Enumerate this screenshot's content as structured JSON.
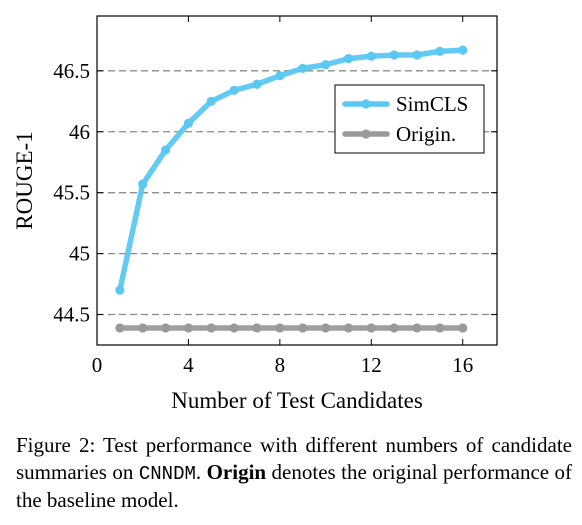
{
  "chart_data": {
    "type": "line",
    "xlabel": "Number of Test Candidates",
    "ylabel": "ROUGE-1",
    "xlim": [
      0,
      17.5
    ],
    "ylim": [
      44.25,
      46.95
    ],
    "x_ticks": [
      0,
      4,
      8,
      12,
      16
    ],
    "y_ticks": [
      44.5,
      45,
      45.5,
      46,
      46.5
    ],
    "x_tick_labels": [
      "0",
      "4",
      "8",
      "12",
      "16"
    ],
    "y_tick_labels": [
      "44.5",
      "45",
      "45.5",
      "46",
      "46.5"
    ],
    "grid": "horizontal dashed at y ticks",
    "legend_position": "right-middle",
    "x": [
      1,
      2,
      3,
      4,
      5,
      6,
      7,
      8,
      9,
      10,
      11,
      12,
      13,
      14,
      15,
      16
    ],
    "series": [
      {
        "name": "SimCLS",
        "color": "#5bc8f2",
        "values": [
          44.7,
          45.57,
          45.85,
          46.07,
          46.25,
          46.34,
          46.39,
          46.46,
          46.52,
          46.55,
          46.6,
          46.62,
          46.63,
          46.63,
          46.66,
          46.67
        ]
      },
      {
        "name": "Origin.",
        "color": "#9a9a9a",
        "values": [
          44.39,
          44.39,
          44.39,
          44.39,
          44.39,
          44.39,
          44.39,
          44.39,
          44.39,
          44.39,
          44.39,
          44.39,
          44.39,
          44.39,
          44.39,
          44.39
        ]
      }
    ]
  },
  "caption": {
    "prefix": "Figure 2: Test performance with different numbers of candidate summaries on ",
    "dataset": "CNNDM",
    "middle": ". ",
    "bold_term": "Origin",
    "suffix": " denotes the original performance of the baseline model."
  }
}
